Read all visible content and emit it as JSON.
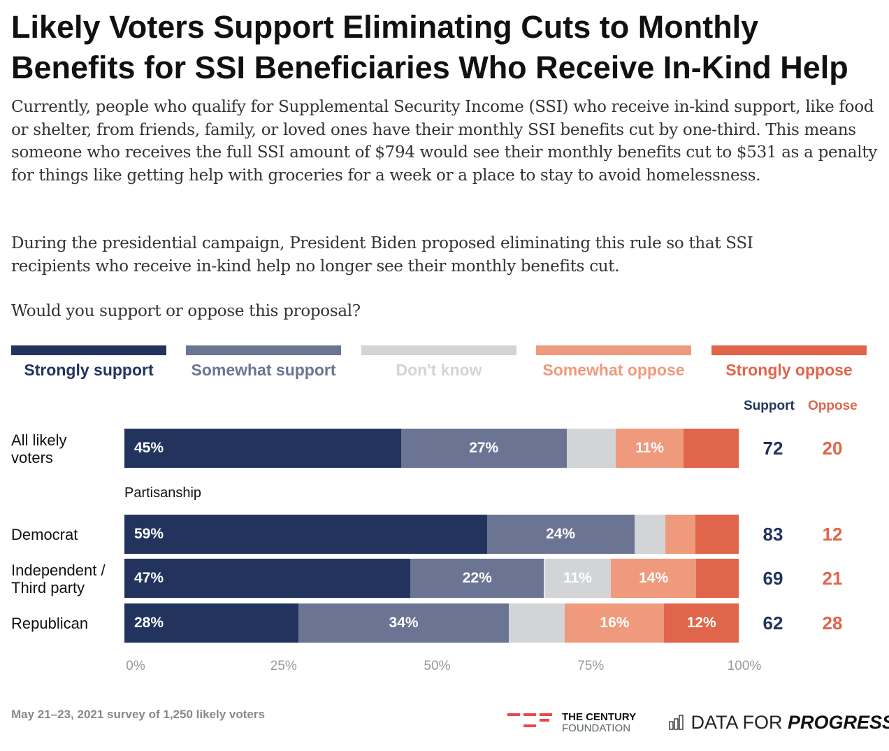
{
  "chart_data": {
    "type": "bar",
    "orientation": "horizontal-stacked",
    "title": "Likely Voters Support Eliminating Cuts to Monthly Benefits for SSI Beneficiaries Who Receive In-Kind Help",
    "description": [
      "Currently, people who qualify for Supplemental Security Income (SSI) who receive in-kind support, like food or shelter, from friends, family, or loved ones have their monthly SSI benefits cut by one-third. This means someone who receives the full SSI amount of $794 would see their monthly benefits cut to $531 as a penalty for things like getting help with groceries for a week or a place to stay to avoid homelessness.",
      "During the presidential campaign, President Biden proposed eliminating this rule so that SSI recipients who receive in-kind help no longer see their monthly benefits cut.",
      "Would you support or oppose this proposal?"
    ],
    "categories": [
      "All likely voters",
      "Democrat",
      "Independent / Third party",
      "Republican"
    ],
    "group_label": "Partisanship",
    "series": [
      {
        "name": "Strongly support",
        "color": "#22345e",
        "values": [
          45,
          59,
          47,
          28
        ],
        "labels": [
          "45%",
          "59%",
          "47%",
          "28%"
        ]
      },
      {
        "name": "Somewhat support",
        "color": "#6b7593",
        "values": [
          27,
          24,
          22,
          34
        ],
        "labels": [
          "27%",
          "24%",
          "22%",
          "34%"
        ]
      },
      {
        "name": "Don't know",
        "color": "#d3d4d6",
        "values": [
          8,
          5,
          11,
          9
        ],
        "labels": [
          "",
          "",
          "11%",
          ""
        ]
      },
      {
        "name": "Somewhat oppose",
        "color": "#ef9a7c",
        "values": [
          11,
          5,
          14,
          16
        ],
        "labels": [
          "11%",
          "",
          "14%",
          "16%"
        ]
      },
      {
        "name": "Strongly oppose",
        "color": "#e0654a",
        "values": [
          9,
          7,
          7,
          12
        ],
        "labels": [
          "",
          "",
          "",
          "12%"
        ]
      }
    ],
    "net": {
      "support_label": "Support",
      "oppose_label": "Oppose",
      "support": [
        "72",
        "83",
        "69",
        "62"
      ],
      "oppose": [
        "20",
        "12",
        "21",
        "28"
      ]
    },
    "xlim": [
      0,
      100
    ],
    "xticks": [
      "0%",
      "25%",
      "50%",
      "75%",
      "100%"
    ],
    "legend": "top",
    "grid": false
  },
  "footer": {
    "note": "May 21–23, 2021 survey of 1,250 likely voters",
    "logo1_line1": "THE CENTURY",
    "logo1_line2": "FOUNDATION",
    "logo2_a": "DATA FOR ",
    "logo2_b": "PROGRESS"
  }
}
